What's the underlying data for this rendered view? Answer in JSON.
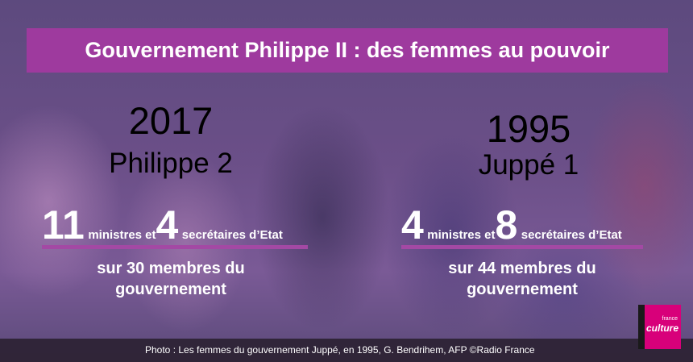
{
  "title": "Gouvernement Philippe II : des femmes au pouvoir",
  "left": {
    "year": "2017",
    "government": "Philippe 2",
    "ministers_count": "11",
    "ministers_label": "ministres et",
    "secretaries_count": "4",
    "secretaries_label": "secrétaires d’Etat",
    "subtitle_line1": "sur 30 membres du",
    "subtitle_line2": "gouvernement"
  },
  "right": {
    "year": "1995",
    "government": "Juppé 1",
    "ministers_count": "4",
    "ministers_label": "ministres et",
    "secretaries_count": "8",
    "secretaries_label": "secrétaires d’Etat",
    "subtitle_line1": "sur 44 membres du",
    "subtitle_line2": "gouvernement"
  },
  "credit": "Photo : Les femmes du gouvernement Juppé, en 1995, G. Bendrihem, AFP  ©Radio France",
  "logo": {
    "line1": "france",
    "line2": "culture"
  },
  "colors": {
    "accent": "#9e3a9e",
    "rule": "#a349a4",
    "logo": "#d8007a"
  }
}
